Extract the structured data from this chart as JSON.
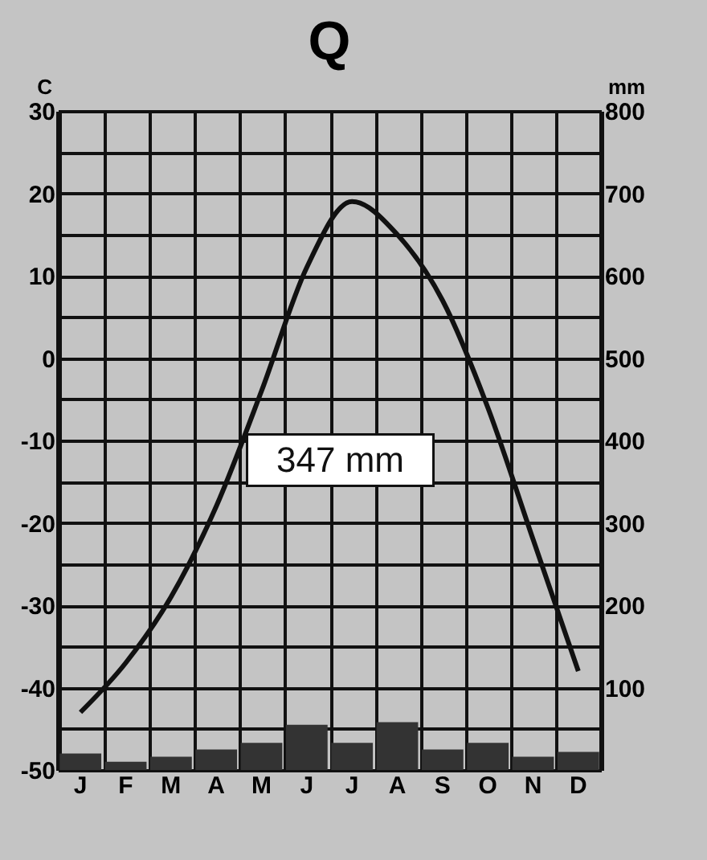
{
  "chart_data": {
    "type": "bar",
    "title": "Q",
    "ylabel": "C",
    "y2label": "mm",
    "categories": [
      "J",
      "F",
      "M",
      "A",
      "M",
      "J",
      "J",
      "A",
      "S",
      "O",
      "N",
      "D"
    ],
    "series": [
      {
        "type": "bar",
        "axis": "y2",
        "color": "#333333",
        "values": [
          20,
          10,
          16,
          25,
          33,
          55,
          33,
          58,
          25,
          33,
          16,
          22
        ]
      },
      {
        "type": "line",
        "axis": "y",
        "color": "#111111",
        "values": [
          -43,
          -37,
          -29,
          -18,
          -4,
          11,
          19,
          15,
          7,
          -6,
          -22,
          -38
        ]
      }
    ],
    "ylim": [
      -50,
      30
    ],
    "yticks": [
      -50,
      {
        "value": -45,
        "label": null
      },
      -40,
      {
        "value": -35,
        "label": null
      },
      -30,
      {
        "value": -25,
        "label": null
      },
      -20,
      {
        "value": -15,
        "label": null
      },
      -10,
      {
        "value": -5,
        "label": null
      },
      0,
      {
        "value": 5,
        "label": null
      },
      10,
      {
        "value": 15,
        "label": null
      },
      20,
      {
        "value": 25,
        "label": null
      },
      30
    ],
    "y2lim": [
      0,
      800
    ],
    "y2ticks": [
      100,
      200,
      300,
      400,
      500,
      600,
      700,
      800
    ],
    "annotations": [
      "347 mm"
    ],
    "grid": true,
    "line_style": "solid",
    "marker": "none"
  }
}
